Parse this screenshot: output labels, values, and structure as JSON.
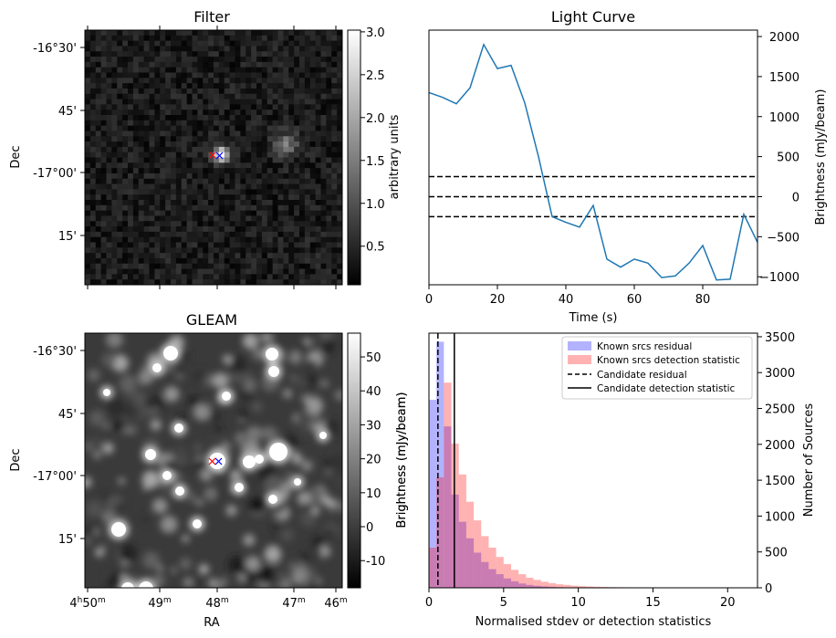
{
  "panels": {
    "filter": {
      "title": "Filter",
      "ylabel": "Dec",
      "yticks": [
        "-16°30'",
        "45'",
        "-17°00'",
        "15'"
      ],
      "colorbar": {
        "label": "arbitrary units",
        "ticks": [
          "0.5",
          "1.0",
          "1.5",
          "2.0",
          "2.5",
          "3.0"
        ],
        "range": [
          0.05,
          3.02
        ]
      },
      "sources": [
        {
          "dx": 0.52,
          "dy": 0.48,
          "peak": 3.0,
          "sigma": 1.0
        },
        {
          "dx": 0.77,
          "dy": 0.44,
          "peak": 1.1,
          "sigma": 1.6
        }
      ]
    },
    "gleam": {
      "title": "GLEAM",
      "ylabel": "Dec",
      "xlabel": "RA",
      "yticks": [
        "-16°30'",
        "45'",
        "-17°00'",
        "15'"
      ],
      "xticks": [
        "4h50m",
        "49m",
        "48m",
        "47m",
        "46m"
      ],
      "colorbar": {
        "label": "Brightness (mJy/beam)",
        "ticks": [
          "-10",
          "0",
          "10",
          "20",
          "30",
          "40",
          "50"
        ],
        "range": [
          -18,
          57
        ]
      }
    }
  },
  "markers": {
    "candidate_red": "#ff0000",
    "candidate_blue": "#0000ff"
  },
  "chart_data": [
    {
      "type": "line",
      "title": "Light Curve",
      "xlabel": "Time (s)",
      "ylabel": "Brightness (mJy/beam)",
      "xlim": [
        0,
        96
      ],
      "ylim": [
        -1100,
        2080
      ],
      "xticks": [
        0,
        20,
        40,
        60,
        80
      ],
      "yticks": [
        -1000,
        -500,
        0,
        500,
        1000,
        1500,
        2000
      ],
      "color": "#1f77b4",
      "x": [
        0,
        4,
        8,
        12,
        16,
        20,
        24,
        28,
        32,
        36,
        40,
        44,
        48,
        52,
        56,
        60,
        64,
        68,
        72,
        76,
        80,
        84,
        88,
        92,
        96
      ],
      "y": [
        1300,
        1240,
        1160,
        1360,
        1900,
        1600,
        1640,
        1170,
        500,
        -250,
        -320,
        -380,
        -110,
        -780,
        -880,
        -780,
        -830,
        -1010,
        -990,
        -830,
        -610,
        -1040,
        -1030,
        -220,
        -570
      ],
      "hlines": [
        {
          "y": 250,
          "style": "dashed"
        },
        {
          "y": 0,
          "style": "dashed"
        },
        {
          "y": -250,
          "style": "dashed"
        }
      ]
    },
    {
      "type": "bar",
      "subtype": "histogram",
      "xlabel": "Normalised stdev or detection statistics",
      "ylabel_left": "Brightness (mJy/beam)",
      "ylabel_right": "Number of Sources",
      "xlim": [
        0,
        22
      ],
      "ylim": [
        0,
        3550
      ],
      "xticks": [
        0,
        5,
        10,
        15,
        20
      ],
      "yticks": [
        0,
        500,
        1000,
        1500,
        2000,
        2500,
        3000,
        3500
      ],
      "bin_width": 0.5,
      "legend_position": "top-right",
      "series": [
        {
          "name": "Known srcs residual",
          "color": "#0000ff",
          "opacity": 0.3,
          "values": [
            2620,
            3430,
            2250,
            1300,
            920,
            690,
            490,
            360,
            260,
            190,
            130,
            90,
            60,
            40,
            28,
            20,
            14,
            9,
            6,
            4,
            3,
            2,
            1,
            1
          ]
        },
        {
          "name": "Known srcs detection statistic",
          "color": "#ff0000",
          "opacity": 0.3,
          "values": [
            560,
            1540,
            2860,
            2010,
            1580,
            1200,
            940,
            720,
            560,
            430,
            330,
            250,
            190,
            140,
            110,
            85,
            65,
            50,
            40,
            30,
            24,
            19,
            15,
            12,
            10,
            8,
            7,
            6,
            5,
            4,
            4,
            3,
            3,
            3,
            2,
            2,
            2,
            2,
            1,
            1,
            1,
            1,
            1,
            1
          ]
        }
      ],
      "vlines": [
        {
          "name": "Candidate residual",
          "x": 0.6,
          "style": "dashed"
        },
        {
          "name": "Candidate detection statistic",
          "x": 1.7,
          "style": "solid"
        }
      ]
    }
  ]
}
